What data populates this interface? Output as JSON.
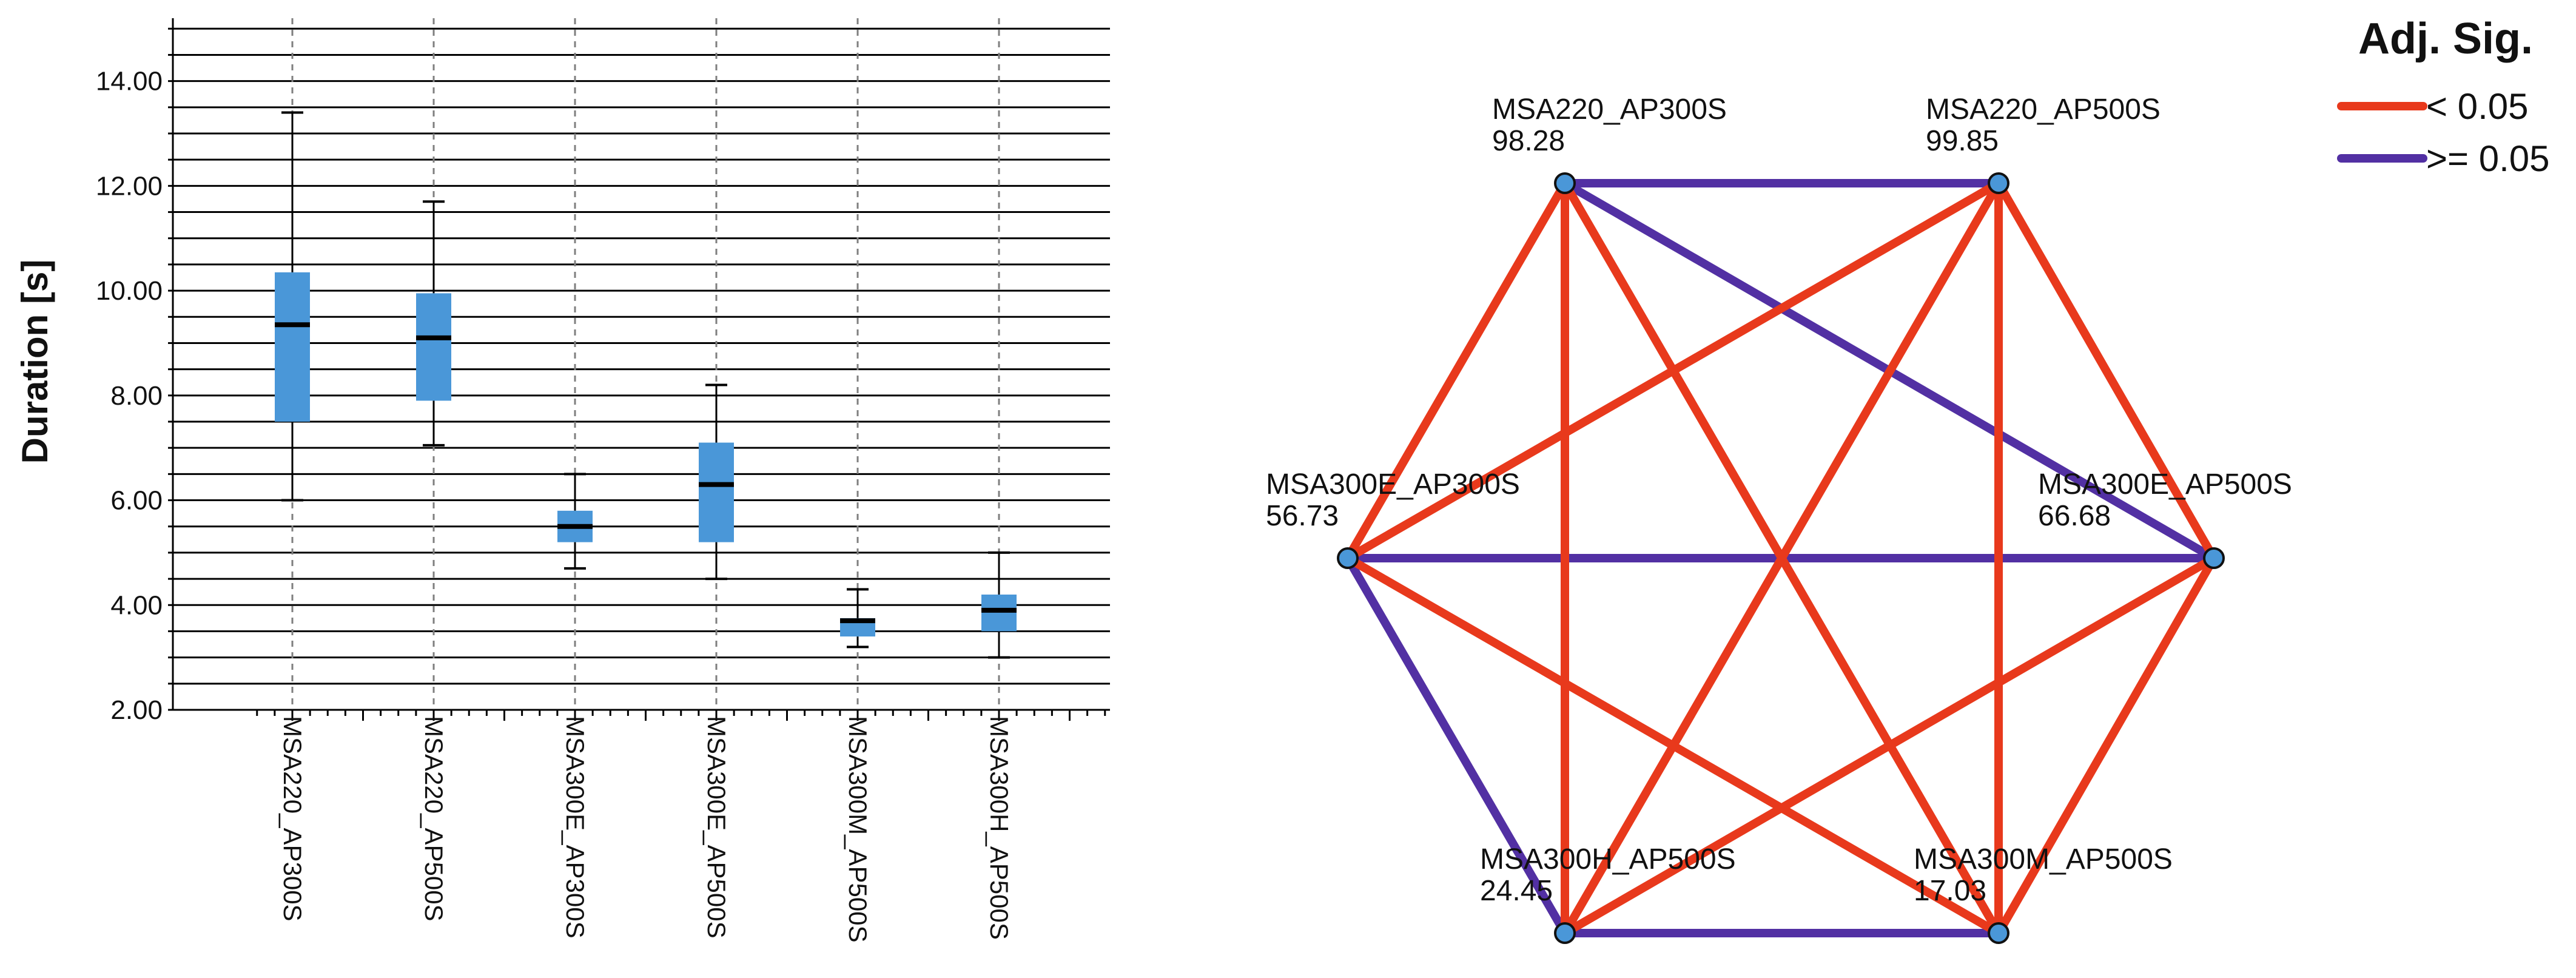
{
  "chart_data": [
    {
      "type": "boxplot",
      "ylabel": "Duration [s]",
      "ylim": [
        2.0,
        15.2
      ],
      "yticks": [
        "2.00",
        "4.00",
        "6.00",
        "8.00",
        "10.00",
        "12.00",
        "14.00"
      ],
      "grid": "horizontal",
      "categories": [
        "MSA220_AP300S",
        "MSA220_AP500S",
        "MSA300E_AP300S",
        "MSA300E_AP500S",
        "MSA300M_AP500S",
        "MSA300H_AP500S"
      ],
      "boxes": [
        {
          "min": 6.0,
          "q1": 7.5,
          "median": 9.35,
          "q3": 10.35,
          "max": 13.4
        },
        {
          "min": 7.05,
          "q1": 7.9,
          "median": 9.1,
          "q3": 9.95,
          "max": 11.7
        },
        {
          "min": 4.7,
          "q1": 5.2,
          "median": 5.5,
          "q3": 5.8,
          "max": 6.5
        },
        {
          "min": 4.5,
          "q1": 5.2,
          "median": 6.3,
          "q3": 7.1,
          "max": 8.2
        },
        {
          "min": 3.2,
          "q1": 3.4,
          "median": 3.7,
          "q3": 3.75,
          "max": 4.3
        },
        {
          "min": 3.0,
          "q1": 3.5,
          "median": 3.9,
          "q3": 4.2,
          "max": 5.0
        }
      ],
      "colors": {
        "box": "#4a97d8",
        "median": "#000000",
        "grid": "#000000",
        "category_line": "#7f7f7f"
      }
    },
    {
      "type": "network",
      "nodes": [
        {
          "id": "MSA220_AP300S",
          "value": "98.28"
        },
        {
          "id": "MSA220_AP500S",
          "value": "99.85"
        },
        {
          "id": "MSA300E_AP300S",
          "value": "56.73"
        },
        {
          "id": "MSA300E_AP500S",
          "value": "66.68"
        },
        {
          "id": "MSA300H_AP500S",
          "value": "24.45"
        },
        {
          "id": "MSA300M_AP500S",
          "value": "17.03"
        }
      ],
      "edges": [
        {
          "from": "MSA220_AP300S",
          "to": "MSA220_AP500S",
          "sig": ">= 0.05"
        },
        {
          "from": "MSA220_AP300S",
          "to": "MSA300E_AP500S",
          "sig": ">= 0.05"
        },
        {
          "from": "MSA300E_AP300S",
          "to": "MSA300E_AP500S",
          "sig": ">= 0.05"
        },
        {
          "from": "MSA300E_AP300S",
          "to": "MSA300H_AP500S",
          "sig": ">= 0.05"
        },
        {
          "from": "MSA300H_AP500S",
          "to": "MSA300M_AP500S",
          "sig": ">= 0.05"
        },
        {
          "from": "MSA220_AP300S",
          "to": "MSA300E_AP300S",
          "sig": "< 0.05"
        },
        {
          "from": "MSA220_AP300S",
          "to": "MSA300H_AP500S",
          "sig": "< 0.05"
        },
        {
          "from": "MSA220_AP300S",
          "to": "MSA300M_AP500S",
          "sig": "< 0.05"
        },
        {
          "from": "MSA220_AP500S",
          "to": "MSA300E_AP300S",
          "sig": "< 0.05"
        },
        {
          "from": "MSA220_AP500S",
          "to": "MSA300E_AP500S",
          "sig": "< 0.05"
        },
        {
          "from": "MSA220_AP500S",
          "to": "MSA300H_AP500S",
          "sig": "< 0.05"
        },
        {
          "from": "MSA220_AP500S",
          "to": "MSA300M_AP500S",
          "sig": "< 0.05"
        },
        {
          "from": "MSA300E_AP300S",
          "to": "MSA300M_AP500S",
          "sig": "< 0.05"
        },
        {
          "from": "MSA300E_AP500S",
          "to": "MSA300H_AP500S",
          "sig": "< 0.05"
        },
        {
          "from": "MSA300E_AP500S",
          "to": "MSA300M_AP500S",
          "sig": "< 0.05"
        }
      ],
      "legend": {
        "title": "Adj. Sig.",
        "placement": "top-right",
        "items": [
          {
            "label": "< 0.05",
            "color": "#e8391c"
          },
          {
            "label": ">= 0.05",
            "color": "#5230a3"
          }
        ]
      },
      "colors": {
        "node_fill": "#4a97d8",
        "node_stroke": "#111111"
      }
    }
  ]
}
